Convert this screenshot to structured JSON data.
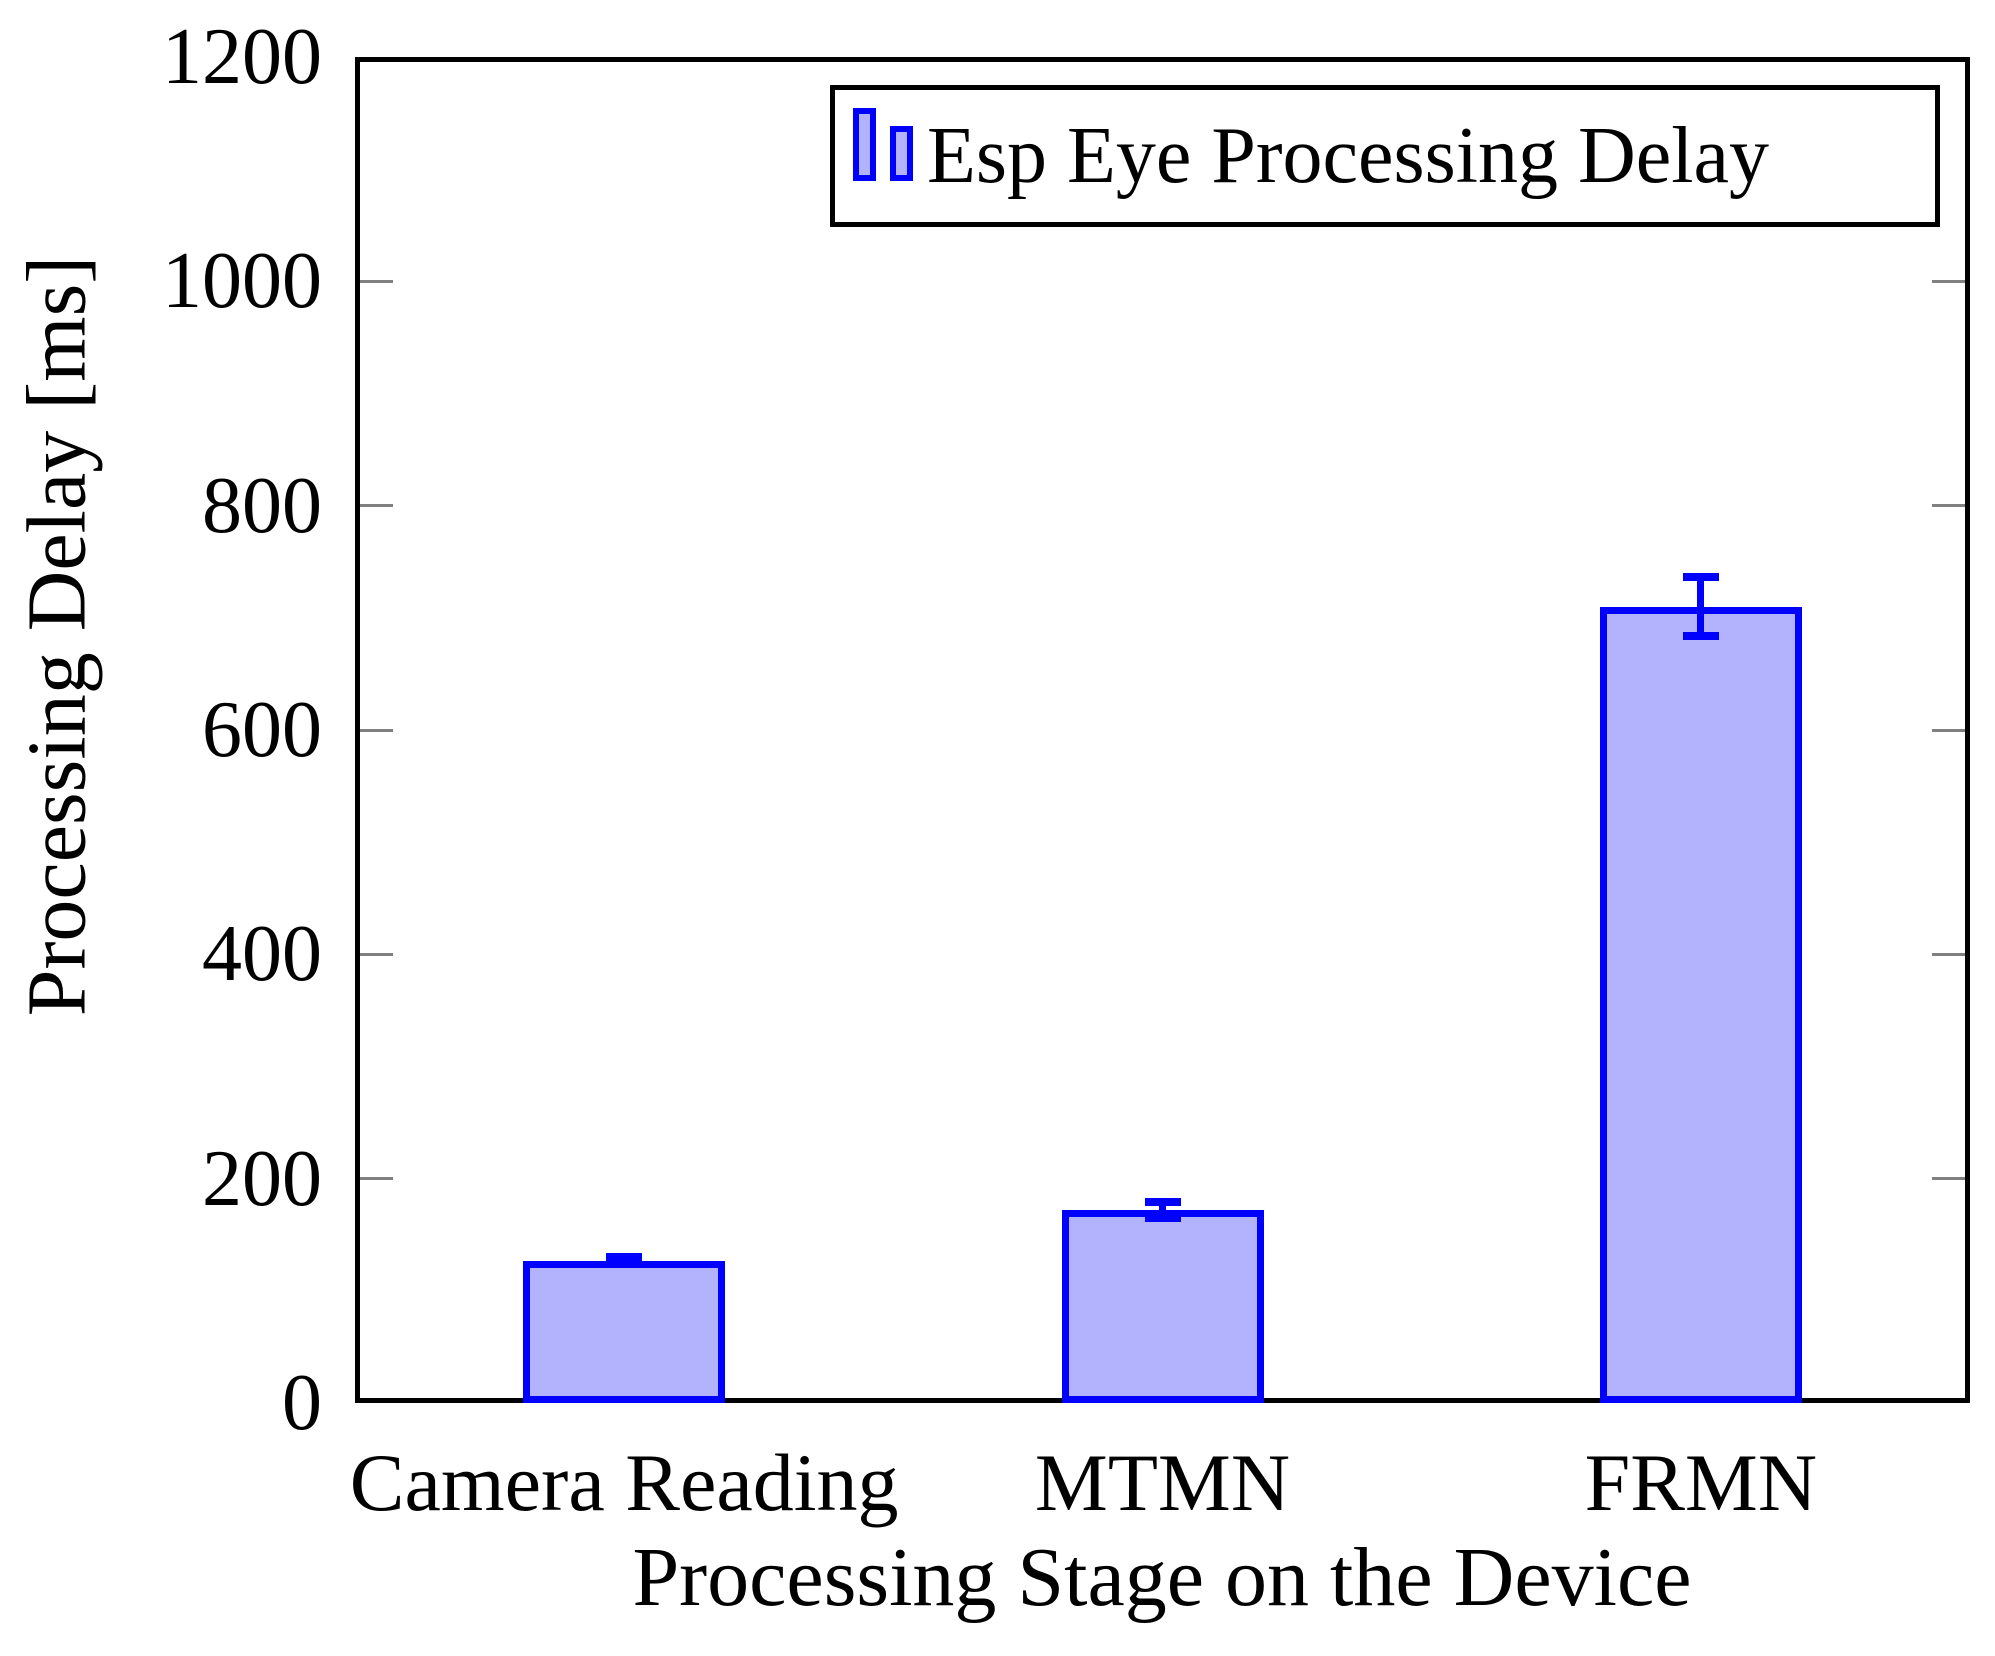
{
  "chart_data": {
    "type": "bar",
    "title": "",
    "xlabel": "Processing Stage on the Device",
    "ylabel": "Processing Delay [ms]",
    "categories": [
      "Camera Reading",
      "MTMN",
      "FRMN"
    ],
    "series": [
      {
        "name": "Esp Eye Processing Delay",
        "values": [
          127,
          172,
          710
        ],
        "errors": [
          3,
          7,
          26
        ]
      }
    ],
    "ylim": [
      0,
      1200
    ],
    "yticks": [
      0,
      200,
      400,
      600,
      800,
      1000,
      1200
    ],
    "grid": false,
    "error_bars": true,
    "legend_position": "top-right",
    "colors": {
      "bar_fill": "#b2b2fd",
      "bar_border": "#0000ff",
      "error_bar": "#0000ff",
      "axis": "#000000",
      "tick": "#808080",
      "text": "#000000",
      "background": "#ffffff"
    }
  },
  "legend": {
    "label": "Esp Eye Processing Delay"
  }
}
